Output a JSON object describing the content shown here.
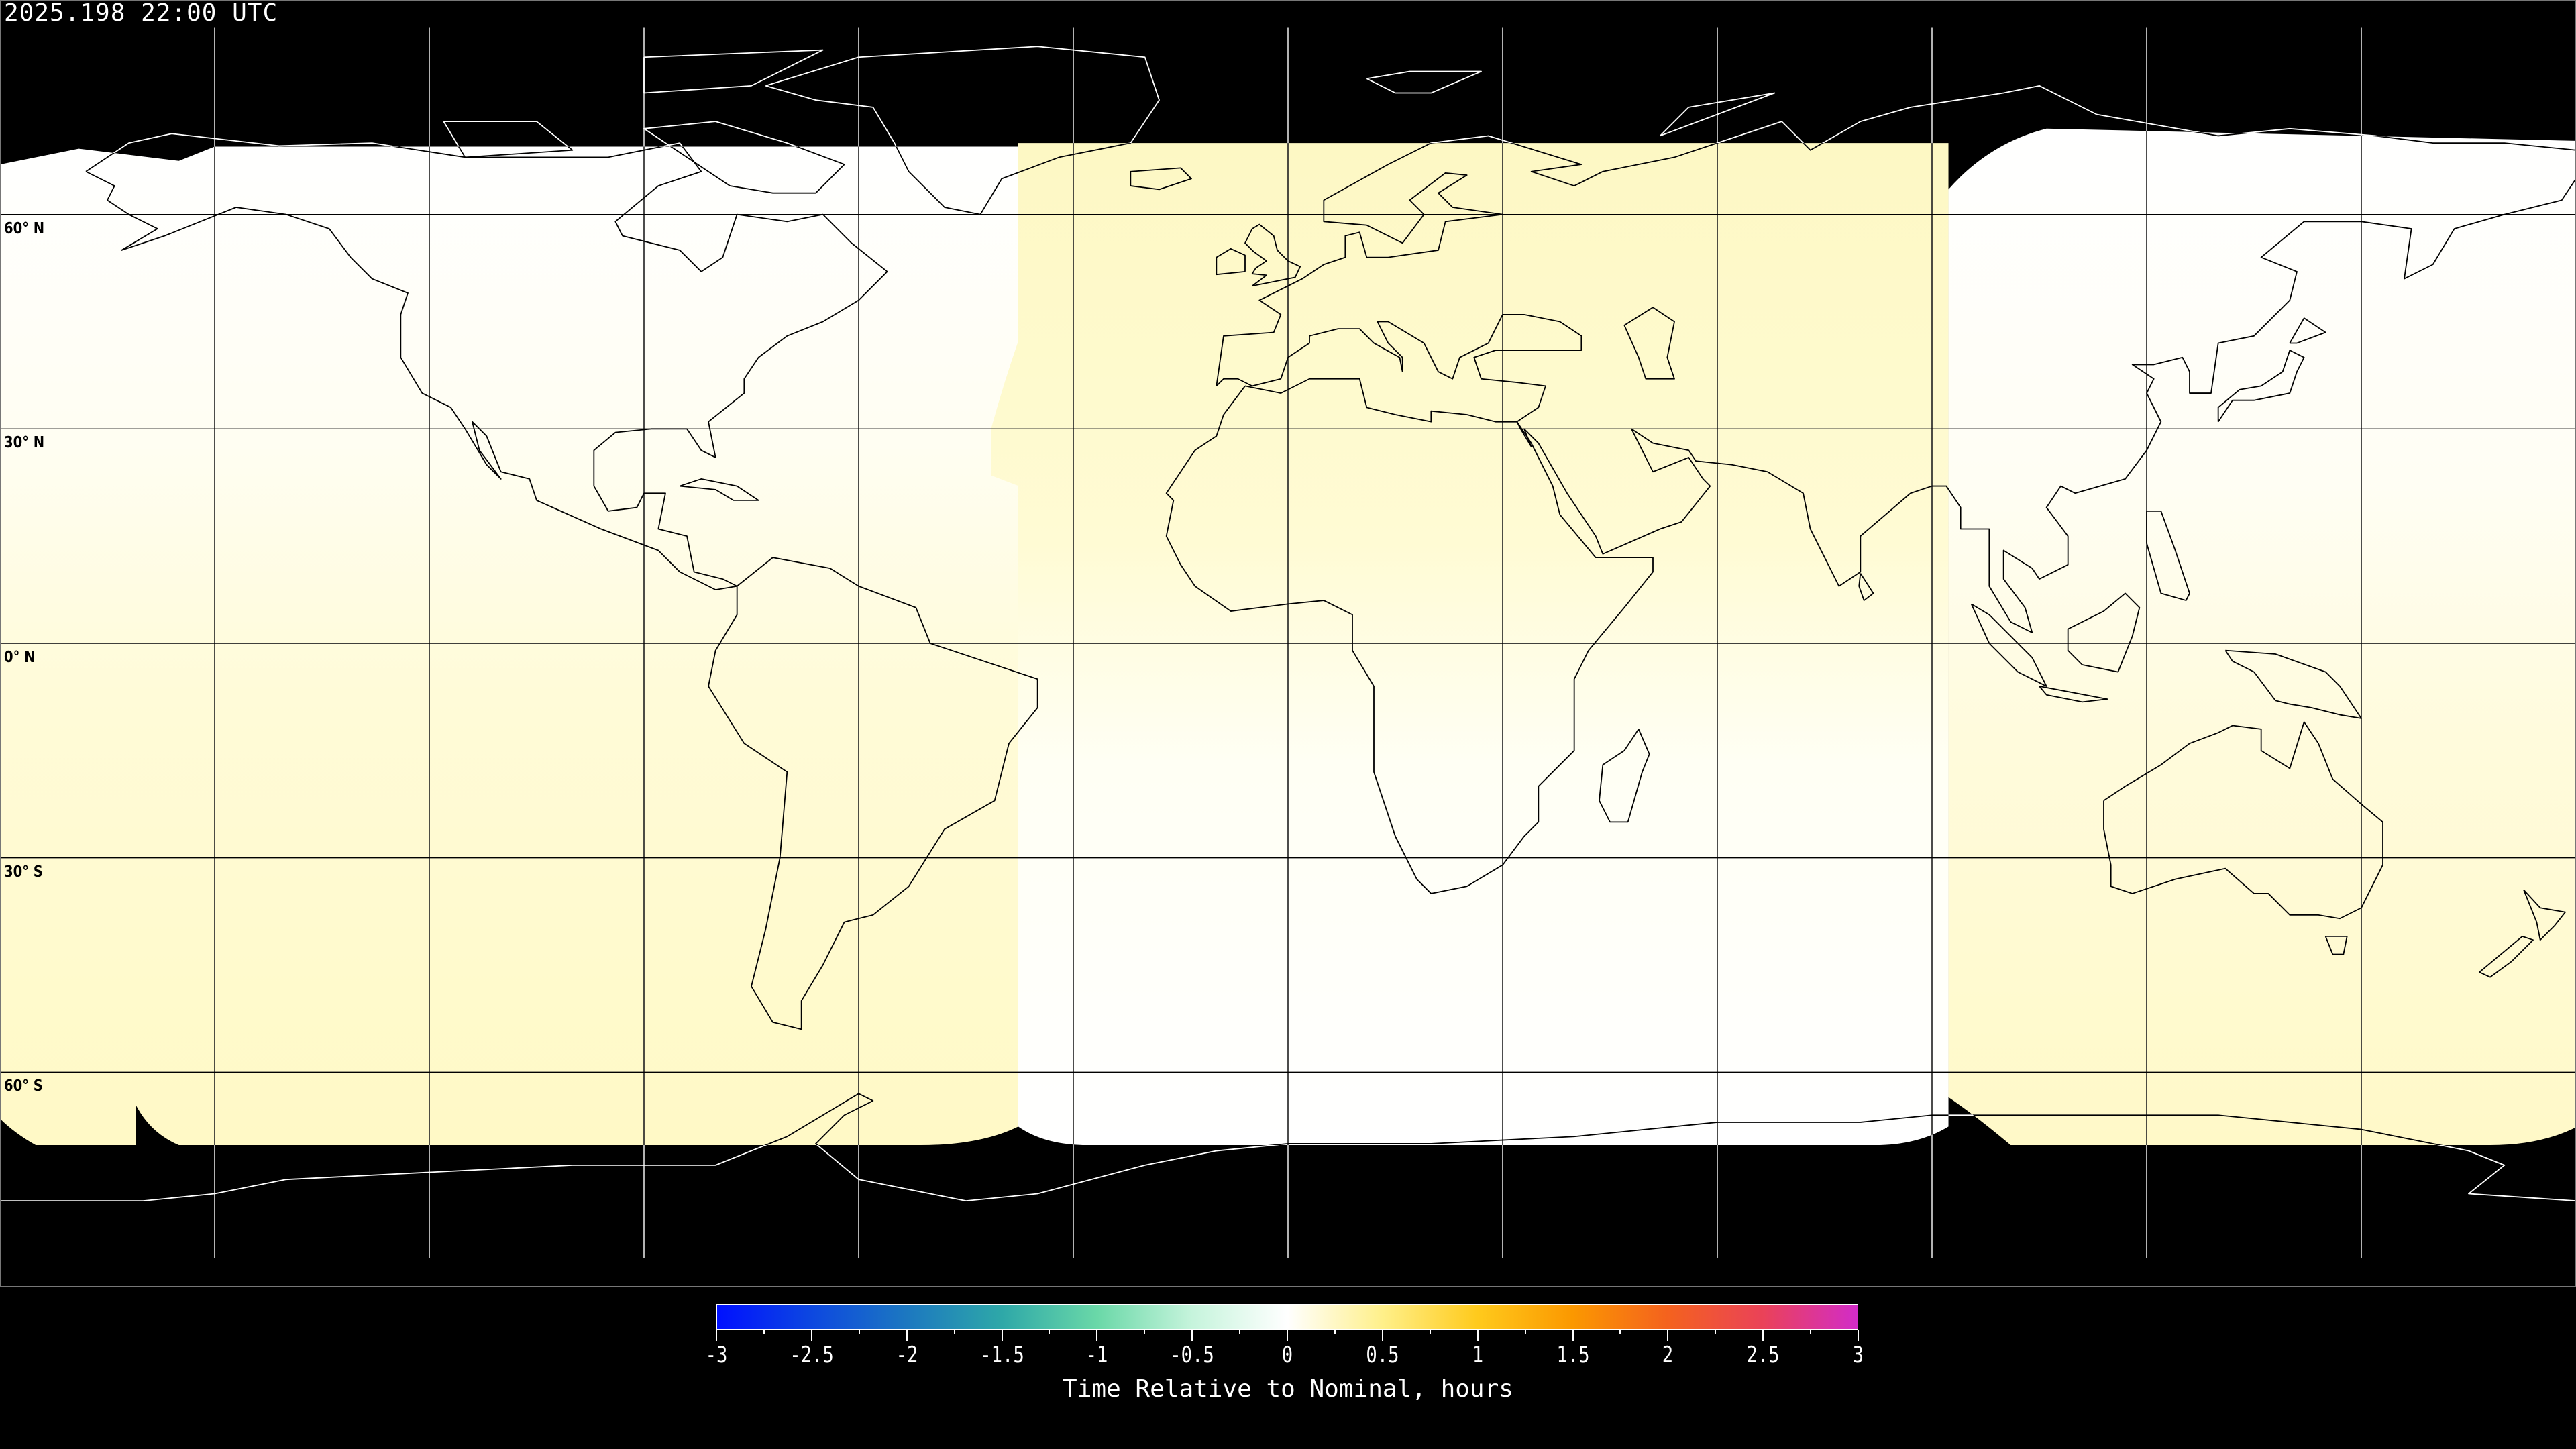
{
  "header": {
    "title": "2025.198 22:00 UTC"
  },
  "map": {
    "projection": "equirectangular",
    "lon_range": [
      -180,
      180
    ],
    "lat_range": [
      -90,
      90
    ],
    "grid_spacing_deg": 30,
    "lat_labels": [
      "60° N",
      "30° N",
      "0° N",
      "30° S",
      "60° S"
    ],
    "lat_label_values": [
      60,
      30,
      0,
      -30,
      -60
    ],
    "colors": {
      "background": "#000000",
      "field_white": "#ffffff",
      "field_pale_yellow": "#fffac8",
      "coastline_on_field": "#000000",
      "coastline_on_background": "#ffffff"
    }
  },
  "colorbar": {
    "label": "Time Relative to Nominal, hours",
    "min": -3,
    "max": 3,
    "tick_labels": [
      "-3",
      "-2.5",
      "-2",
      "-1.5",
      "-1",
      "-0.5",
      "0",
      "0.5",
      "1",
      "1.5",
      "2",
      "2.5",
      "3"
    ],
    "colormap": [
      "#0010ff",
      "#0d48e0",
      "#1c78c0",
      "#2ea8a8",
      "#6ad8a8",
      "#c6f4dc",
      "#ffffff",
      "#fff08a",
      "#ffca1c",
      "#fb9800",
      "#f4621e",
      "#ea4258",
      "#d22cc8"
    ]
  }
}
